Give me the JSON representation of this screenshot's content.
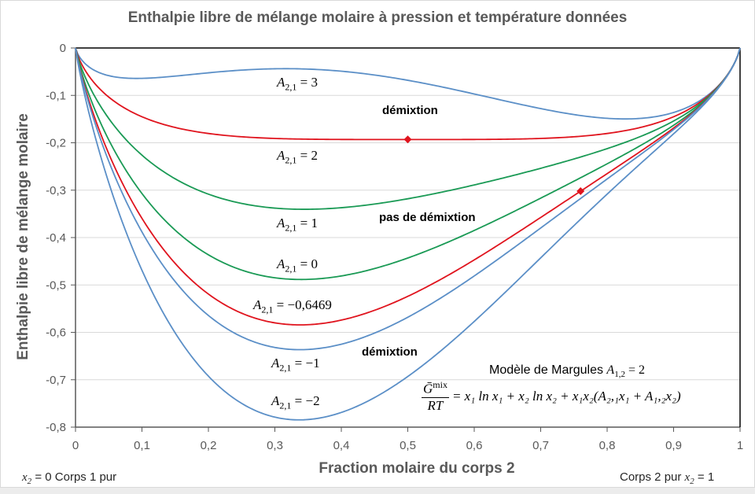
{
  "chart_data": {
    "type": "line",
    "title": "Enthalpie libre de mélange molaire à pression et température données",
    "xlabel": "Fraction molaire du corps 2",
    "ylabel": "Enthalpie libre de mélange molaire",
    "xlim": [
      0,
      1
    ],
    "ylim": [
      -0.8,
      0
    ],
    "x_ticks": [
      "0",
      "0,1",
      "0,2",
      "0,3",
      "0,4",
      "0,5",
      "0,6",
      "0,7",
      "0,8",
      "0,9",
      "1"
    ],
    "y_ticks": [
      "0",
      "-0,1",
      "-0,2",
      "-0,3",
      "-0,4",
      "-0,5",
      "-0,6",
      "-0,7",
      "-0,8"
    ],
    "grid": "horizontal",
    "model": {
      "A12": 2,
      "formula": "G_mix/RT = x1 ln x1 + x2 ln x2 + x1 x2 (A21 x1 + A12 x2)"
    },
    "series": [
      {
        "name": "A2,1 = 3",
        "A21": 3,
        "color": "#5b8fc7"
      },
      {
        "name": "A2,1 = 2",
        "A21": 2,
        "color": "#e0141e"
      },
      {
        "name": "A2,1 = 1",
        "A21": 1,
        "color": "#1a9a55"
      },
      {
        "name": "A2,1 = 0",
        "A21": 0,
        "color": "#1a9a55"
      },
      {
        "name": "A2,1 = -0,6469",
        "A21": -0.6469,
        "color": "#e0141e"
      },
      {
        "name": "A2,1 = -1",
        "A21": -1,
        "color": "#5b8fc7"
      },
      {
        "name": "A2,1 = -2",
        "A21": -2,
        "color": "#5b8fc7"
      }
    ],
    "markers": [
      {
        "x": 0.5,
        "y": -0.193,
        "color": "#e0141e",
        "shape": "diamond"
      },
      {
        "x": 0.76,
        "y": -0.302,
        "color": "#e0141e",
        "shape": "diamond"
      }
    ],
    "annotations": [
      "démixtion",
      "pas de démixtion",
      "démixtion",
      "Modèle de Margules A1,2 = 2",
      "x2 = 0  Corps 1 pur",
      "Corps 2 pur  x2 = 1"
    ]
  },
  "text": {
    "title": "Enthalpie libre de mélange molaire à pression et température données",
    "ylabel": "Enthalpie libre de mélange molaire",
    "xlabel": "Fraction molaire du corps 2",
    "left_note_pre": "x",
    "left_note_sub": "2",
    "left_note_post": " = 0  Corps 1 pur",
    "right_note_pre": "Corps 2 pur  ",
    "right_note_x": "x",
    "right_note_sub": "2",
    "right_note_post": " = 1",
    "demix_top": "démixtion",
    "no_demix": "pas de démixtion",
    "demix_bottom": "démixtion",
    "model_pre": "Modèle de Margules ",
    "model_A": "A",
    "model_sub": "1,2",
    "model_post": " = 2",
    "formula_num": "Ḡ",
    "formula_num_sup": "mix",
    "formula_den": "RT",
    "formula_rhs": "= x₁ ln x₁ + x₂ ln x₂ + x₁x₂(A₂,₁x₁ + A₁,₂x₂)",
    "labels": [
      {
        "sub": "2,1",
        "val": " = 3"
      },
      {
        "sub": "2,1",
        "val": " = 2"
      },
      {
        "sub": "2,1",
        "val": " = 1"
      },
      {
        "sub": "2,1",
        "val": " = 0"
      },
      {
        "sub": "2,1",
        "val": " = −0,6469"
      },
      {
        "sub": "2,1",
        "val": " = −1"
      },
      {
        "sub": "2,1",
        "val": " = −2"
      }
    ]
  }
}
